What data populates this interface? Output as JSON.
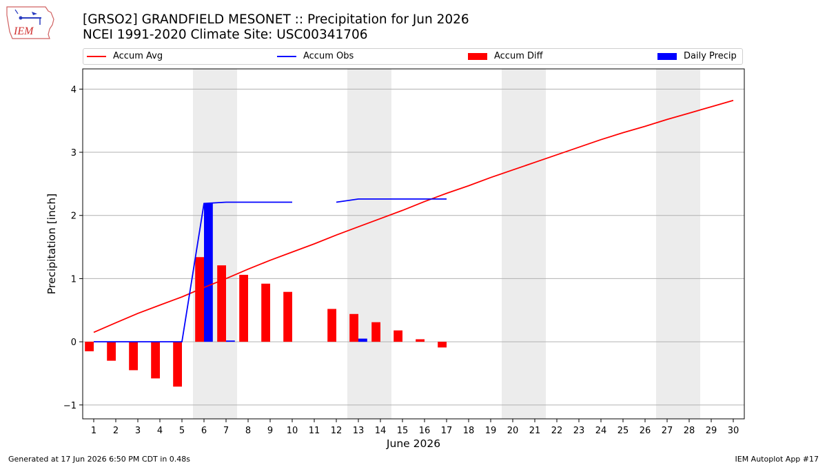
{
  "header": {
    "logo_text": "IEM",
    "title_line1": "[GRSO2] GRANDFIELD MESONET :: Precipitation for Jun 2026",
    "title_line2": "NCEI 1991-2020 Climate Site: USC00341706"
  },
  "legend": {
    "items": [
      {
        "label": "Accum Avg",
        "kind": "line",
        "color": "#ff0000"
      },
      {
        "label": "Accum Obs",
        "kind": "line",
        "color": "#0000ff"
      },
      {
        "label": "Accum Diff",
        "kind": "box",
        "color": "#ff0000"
      },
      {
        "label": "Daily Precip",
        "kind": "box",
        "color": "#0000ff"
      }
    ]
  },
  "footer": {
    "left": "Generated at 17 Jun 2026 6:50 PM CDT in 0.48s",
    "right": "IEM Autoplot App #17"
  },
  "chart_data": {
    "type": "bar",
    "xlabel": "June 2026",
    "ylabel": "Precipitation [inch]",
    "x": [
      1,
      2,
      3,
      4,
      5,
      6,
      7,
      8,
      9,
      10,
      11,
      12,
      13,
      14,
      15,
      16,
      17,
      18,
      19,
      20,
      21,
      22,
      23,
      24,
      25,
      26,
      27,
      28,
      29,
      30
    ],
    "xlim": [
      0.5,
      30.5
    ],
    "ylim": [
      -1.22,
      4.32
    ],
    "yticks": [
      -1,
      0,
      1,
      2,
      3,
      4
    ],
    "grid": "horizontal",
    "weekend_shading": [
      [
        6,
        7
      ],
      [
        13,
        14
      ],
      [
        20,
        21
      ],
      [
        27,
        28
      ]
    ],
    "colors": {
      "avg": "#ff0000",
      "obs": "#0000ff",
      "diff": "#ff0000",
      "daily": "#0000ff",
      "weekend": "#ececec"
    },
    "series": [
      {
        "name": "Accum Avg",
        "kind": "line",
        "values": [
          0.15,
          0.3,
          0.45,
          0.58,
          0.71,
          0.86,
          1.0,
          1.15,
          1.29,
          1.42,
          1.55,
          1.69,
          1.82,
          1.95,
          2.08,
          2.22,
          2.35,
          2.47,
          2.6,
          2.72,
          2.84,
          2.96,
          3.08,
          3.2,
          3.31,
          3.41,
          3.52,
          3.62,
          3.72,
          3.82
        ]
      },
      {
        "name": "Accum Obs",
        "kind": "line",
        "values": [
          0.0,
          0.0,
          0.0,
          0.0,
          0.0,
          2.19,
          2.21,
          2.21,
          2.21,
          2.21,
          null,
          2.21,
          2.26,
          2.26,
          2.26,
          2.26,
          2.26,
          null,
          null,
          null,
          null,
          null,
          null,
          null,
          null,
          null,
          null,
          null,
          null,
          null
        ]
      },
      {
        "name": "Accum Diff",
        "kind": "bar",
        "values": [
          -0.15,
          -0.3,
          -0.45,
          -0.58,
          -0.71,
          1.34,
          1.21,
          1.06,
          0.92,
          0.79,
          null,
          0.52,
          0.44,
          0.31,
          0.18,
          0.04,
          -0.09,
          null,
          null,
          null,
          null,
          null,
          null,
          null,
          null,
          null,
          null,
          null,
          null,
          null
        ]
      },
      {
        "name": "Daily Precip",
        "kind": "bar",
        "values": [
          0,
          0,
          0,
          0,
          0,
          2.19,
          0.02,
          0,
          0,
          0,
          null,
          0,
          0.05,
          0,
          0,
          0,
          0,
          null,
          null,
          null,
          null,
          null,
          null,
          null,
          null,
          null,
          null,
          null,
          null,
          null
        ]
      }
    ]
  }
}
